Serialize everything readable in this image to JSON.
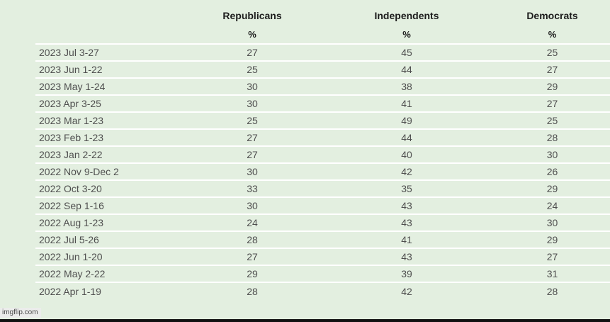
{
  "page": {
    "background_color": "#e3efe0",
    "separator_color": "#ffffff",
    "watermark": "imgflip.com"
  },
  "table": {
    "columns": [
      {
        "label": "Republicans",
        "unit": "%"
      },
      {
        "label": "Independents",
        "unit": "%"
      },
      {
        "label": "Democrats",
        "unit": "%"
      }
    ],
    "rows": [
      {
        "date": "2023 Jul 3-27",
        "republicans": 27,
        "independents": 45,
        "democrats": 25
      },
      {
        "date": "2023 Jun 1-22",
        "republicans": 25,
        "independents": 44,
        "democrats": 27
      },
      {
        "date": "2023 May 1-24",
        "republicans": 30,
        "independents": 38,
        "democrats": 29
      },
      {
        "date": "2023 Apr 3-25",
        "republicans": 30,
        "independents": 41,
        "democrats": 27
      },
      {
        "date": "2023 Mar 1-23",
        "republicans": 25,
        "independents": 49,
        "democrats": 25
      },
      {
        "date": "2023 Feb 1-23",
        "republicans": 27,
        "independents": 44,
        "democrats": 28
      },
      {
        "date": "2023 Jan 2-22",
        "republicans": 27,
        "independents": 40,
        "democrats": 30
      },
      {
        "date": "2022 Nov 9-Dec 2",
        "republicans": 30,
        "independents": 42,
        "democrats": 26
      },
      {
        "date": "2022 Oct 3-20",
        "republicans": 33,
        "independents": 35,
        "democrats": 29
      },
      {
        "date": "2022 Sep 1-16",
        "republicans": 30,
        "independents": 43,
        "democrats": 24
      },
      {
        "date": "2022 Aug 1-23",
        "republicans": 24,
        "independents": 43,
        "democrats": 30
      },
      {
        "date": "2022 Jul 5-26",
        "republicans": 28,
        "independents": 41,
        "democrats": 29
      },
      {
        "date": "2022 Jun 1-20",
        "republicans": 27,
        "independents": 43,
        "democrats": 27
      },
      {
        "date": "2022 May 2-22",
        "republicans": 29,
        "independents": 39,
        "democrats": 31
      },
      {
        "date": "2022 Apr 1-19",
        "republicans": 28,
        "independents": 42,
        "democrats": 28
      }
    ]
  },
  "chart_data": {
    "type": "table",
    "title": "",
    "unit": "%",
    "categories": [
      "2023 Jul 3-27",
      "2023 Jun 1-22",
      "2023 May 1-24",
      "2023 Apr 3-25",
      "2023 Mar 1-23",
      "2023 Feb 1-23",
      "2023 Jan 2-22",
      "2022 Nov 9-Dec 2",
      "2022 Oct 3-20",
      "2022 Sep 1-16",
      "2022 Aug 1-23",
      "2022 Jul 5-26",
      "2022 Jun 1-20",
      "2022 May 2-22",
      "2022 Apr 1-19"
    ],
    "series": [
      {
        "name": "Republicans",
        "values": [
          27,
          25,
          30,
          30,
          25,
          27,
          27,
          30,
          33,
          30,
          24,
          28,
          27,
          29,
          28
        ]
      },
      {
        "name": "Independents",
        "values": [
          45,
          44,
          38,
          41,
          49,
          44,
          40,
          42,
          35,
          43,
          43,
          41,
          43,
          39,
          42
        ]
      },
      {
        "name": "Democrats",
        "values": [
          25,
          27,
          29,
          27,
          25,
          28,
          30,
          26,
          29,
          24,
          30,
          29,
          27,
          31,
          28
        ]
      }
    ]
  }
}
